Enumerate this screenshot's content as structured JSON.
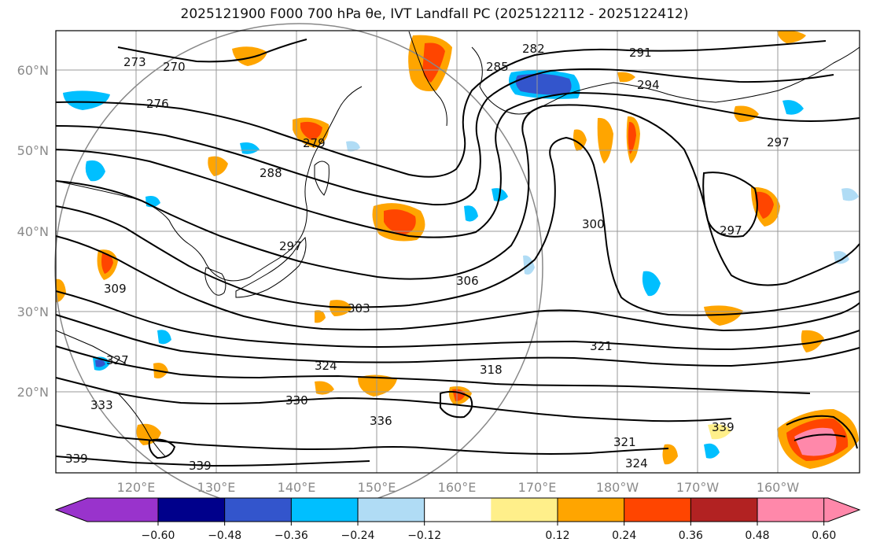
{
  "title": "2025121900 F000 700 hPa θe, IVT Landfall PC (2025122112 - 2025122412)",
  "lat_labels": [
    "60°N",
    "50°N",
    "40°N",
    "30°N",
    "20°N"
  ],
  "lon_labels": [
    "120°E",
    "130°E",
    "140°E",
    "150°E",
    "160°E",
    "170°E",
    "180°W",
    "170°W",
    "160°W"
  ],
  "contour_labels": [
    "270",
    "273",
    "276",
    "279",
    "282",
    "285",
    "288",
    "291",
    "294",
    "297",
    "297",
    "297",
    "300",
    "303",
    "306",
    "309",
    "318",
    "321",
    "321",
    "324",
    "324",
    "327",
    "330",
    "333",
    "336",
    "339",
    "339",
    "339"
  ],
  "colorbar": {
    "ticks": [
      "−0.60",
      "−0.48",
      "−0.36",
      "−0.24",
      "−0.12",
      "0.12",
      "0.24",
      "0.36",
      "0.48",
      "0.60"
    ],
    "colors": [
      "#9933cc",
      "#00008b",
      "#3355cc",
      "#00bfff",
      "#b0dcf5",
      "#ffffff",
      "#ffef8a",
      "#ffa500",
      "#ff4500",
      "#b22222",
      "#ff88aa"
    ]
  },
  "colors": {
    "contour": "#000000",
    "grid": "#999999",
    "coast": "#000000"
  }
}
